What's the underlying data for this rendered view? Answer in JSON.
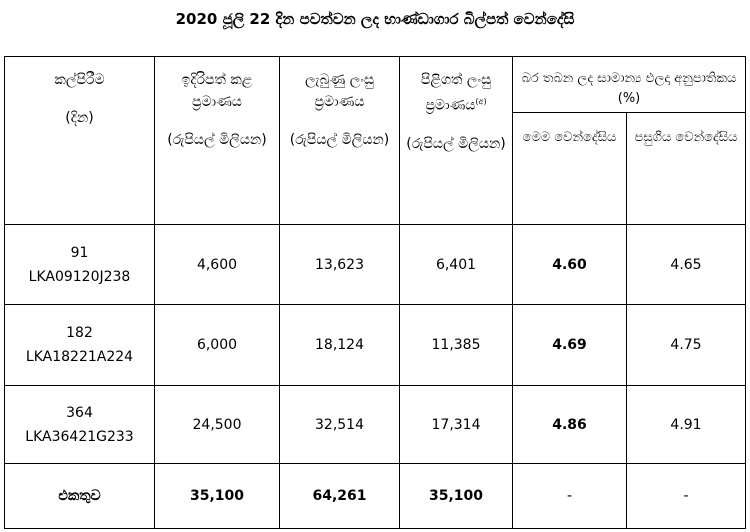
{
  "title": "2020 ජූලි 22 දින පවත්වන ලද භාණ්ඩාගාර බිල්පත් වෙන්දේසි",
  "headers": {
    "tenor_line1": "කල්පිරීම",
    "tenor_line2": "(දින)",
    "offered_line1": "ඉදිරිපත් කළ ප්‍රමාණය",
    "offered_line2": "(රුපියල් මිලියන)",
    "bids_line1": "ලැබුණු ලංසු ප්‍රමාණය",
    "bids_line2": "(රුපියල් මිලියන)",
    "accepted_line1": "පිළිගත් ලංසු ප්‍රමාණය",
    "accepted_sup": "(අ)",
    "accepted_line2": "(රුපියල් මිලියන)",
    "yield_group": "බර තබන ලද සාමාන්‍ය ඵලදා අනුපාතිකය (%)",
    "this_week": "මෙම වෙන්දේසිය",
    "previous": "පසුගිය වෙන්දේසිය"
  },
  "rows": [
    {
      "days": "91",
      "code": "LKA09120J238",
      "offered": "4,600",
      "received": "13,623",
      "accepted": "6,401",
      "this_yield": "4.60",
      "prev_yield": "4.65"
    },
    {
      "days": "182",
      "code": "LKA18221A224",
      "offered": "6,000",
      "received": "18,124",
      "accepted": "11,385",
      "this_yield": "4.69",
      "prev_yield": "4.75"
    },
    {
      "days": "364",
      "code": "LKA36421G233",
      "offered": "24,500",
      "received": "32,514",
      "accepted": "17,314",
      "this_yield": "4.86",
      "prev_yield": "4.91"
    }
  ],
  "total": {
    "label": "එකතුව",
    "offered": "35,100",
    "received": "64,261",
    "accepted": "35,100",
    "this_yield": "-",
    "prev_yield": "-"
  }
}
